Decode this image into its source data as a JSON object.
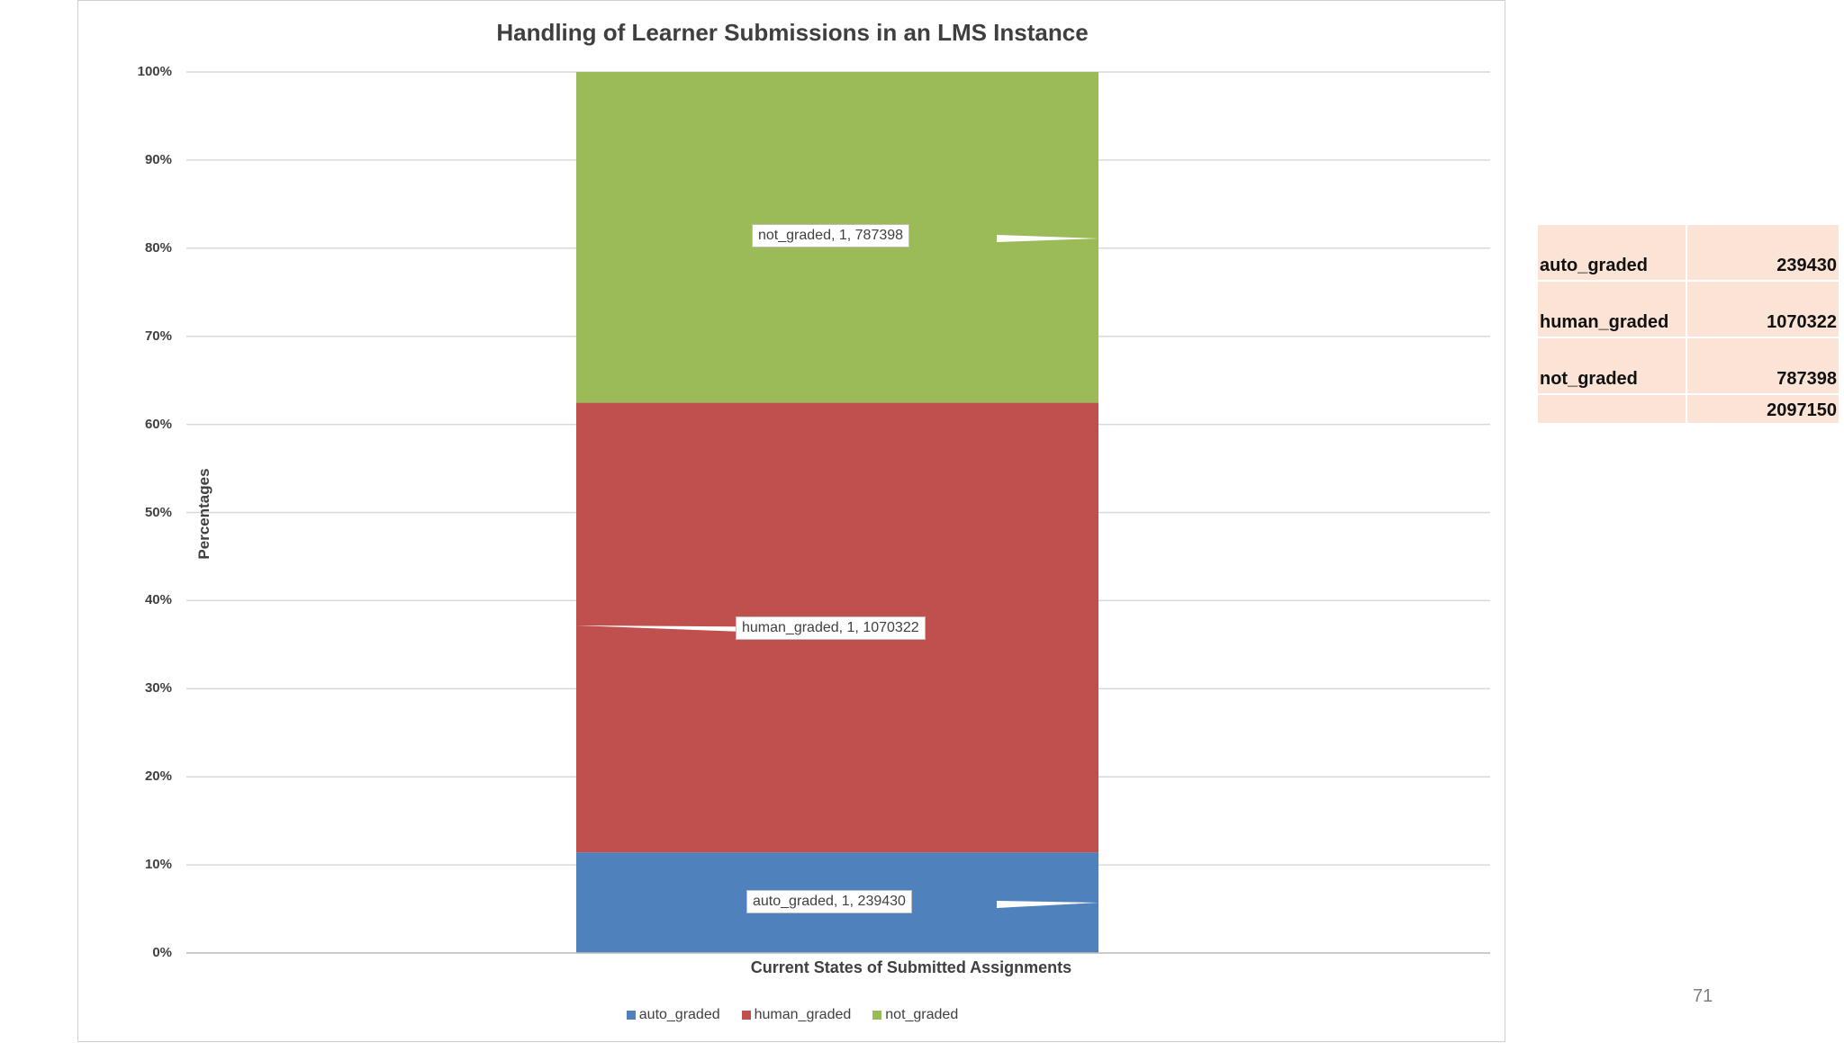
{
  "chart_data": {
    "type": "bar",
    "stacked": "percent",
    "title": "Handling of Learner Submissions in an LMS Instance",
    "xlabel": "Current States of Submitted Assignments",
    "ylabel": "Percentages",
    "ylim": [
      0,
      100
    ],
    "yticks": [
      "0%",
      "10%",
      "20%",
      "30%",
      "40%",
      "50%",
      "60%",
      "70%",
      "80%",
      "90%",
      "100%"
    ],
    "grid": true,
    "legend": "bottom",
    "categories": [
      "1"
    ],
    "series": [
      {
        "name": "auto_graded",
        "values": [
          239430
        ],
        "color": "#4f81bd",
        "label": "auto_graded,  1, 239430"
      },
      {
        "name": "human_graded",
        "values": [
          1070322
        ],
        "color": "#c0504d",
        "label": "human_graded, 1, 1070322"
      },
      {
        "name": "not_graded",
        "values": [
          787398
        ],
        "color": "#9bbb59",
        "label": "not_graded, 1, 787398"
      }
    ]
  },
  "table": {
    "rows": [
      {
        "name": "auto_graded",
        "value": "239430"
      },
      {
        "name": "human_graded",
        "value": "1070322"
      },
      {
        "name": "not_graded",
        "value": "787398"
      }
    ],
    "total": "2097150"
  },
  "page_number": "71"
}
